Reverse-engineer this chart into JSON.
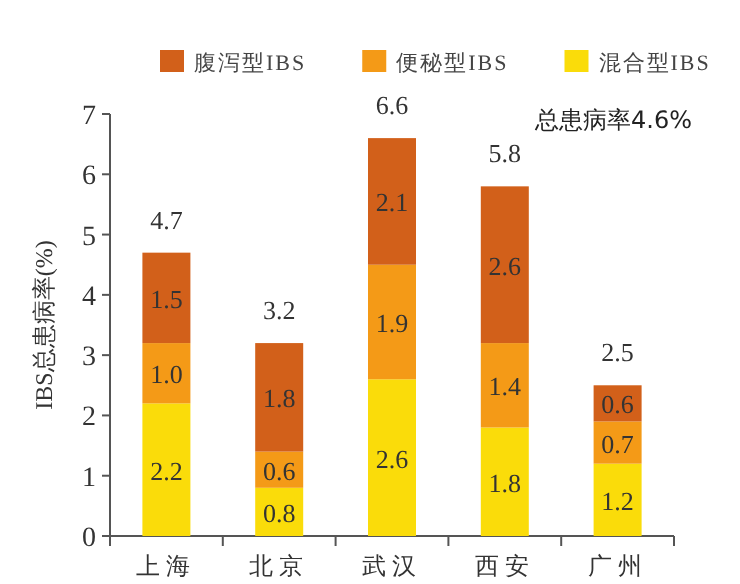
{
  "chart_data": {
    "type": "bar",
    "stacked": true,
    "ylabel": "IBS总患病率(%)",
    "categories": [
      "上海",
      "北京",
      "武汉",
      "西安",
      "广州"
    ],
    "series": [
      {
        "name": "混合型IBS",
        "color": "#fadc0a",
        "values": [
          2.2,
          0.8,
          2.6,
          1.8,
          1.2
        ]
      },
      {
        "name": "便秘型IBS",
        "color": "#f49a17",
        "values": [
          1.0,
          0.6,
          1.9,
          1.4,
          0.7
        ],
        "value_labels": [
          "1.0",
          "0.6",
          "1.9",
          "1.4",
          "0.7"
        ]
      },
      {
        "name": "腹泻型IBS",
        "color": "#d2601a",
        "values": [
          1.5,
          1.8,
          2.1,
          2.6,
          0.6
        ]
      }
    ],
    "totals": [
      "4.7",
      "3.2",
      "6.6",
      "5.8",
      "2.5"
    ],
    "ylim": [
      0,
      7
    ],
    "yticks": [
      0,
      1,
      2,
      3,
      4,
      5,
      6,
      7
    ],
    "data_labels": true,
    "legend": "top",
    "annotations": [
      "总患病率4.6%"
    ]
  }
}
